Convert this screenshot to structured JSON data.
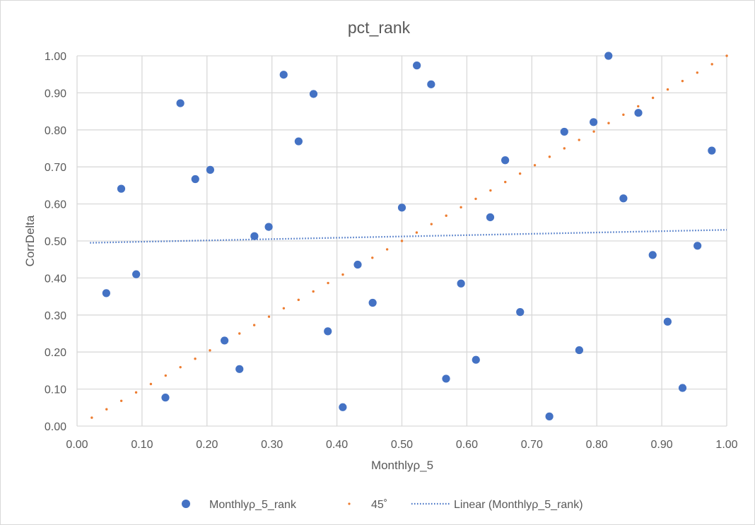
{
  "chart_data": {
    "type": "scatter",
    "title": "pct_rank",
    "xlabel": "Monthlyρ_5",
    "ylabel": "CorrDelta",
    "xlim": [
      0,
      1
    ],
    "ylim": [
      0,
      1
    ],
    "x_ticks": [
      "0.00",
      "0.10",
      "0.20",
      "0.30",
      "0.40",
      "0.50",
      "0.60",
      "0.70",
      "0.80",
      "0.90",
      "1.00"
    ],
    "y_ticks": [
      "0.00",
      "0.10",
      "0.20",
      "0.30",
      "0.40",
      "0.50",
      "0.60",
      "0.70",
      "0.80",
      "0.90",
      "1.00"
    ],
    "grid": true,
    "legend_position": "bottom",
    "series": [
      {
        "name": "Monthlyρ_5_rank",
        "style": "marker",
        "color": "#4472C4",
        "points": [
          [
            0.045,
            0.359
          ],
          [
            0.068,
            0.641
          ],
          [
            0.091,
            0.41
          ],
          [
            0.136,
            0.077
          ],
          [
            0.159,
            0.872
          ],
          [
            0.182,
            0.667
          ],
          [
            0.205,
            0.692
          ],
          [
            0.227,
            0.231
          ],
          [
            0.25,
            0.154
          ],
          [
            0.273,
            0.513
          ],
          [
            0.295,
            0.538
          ],
          [
            0.318,
            0.949
          ],
          [
            0.341,
            0.769
          ],
          [
            0.364,
            0.897
          ],
          [
            0.386,
            0.256
          ],
          [
            0.409,
            0.051
          ],
          [
            0.432,
            0.436
          ],
          [
            0.455,
            0.333
          ],
          [
            0.5,
            0.59
          ],
          [
            0.523,
            0.974
          ],
          [
            0.545,
            0.923
          ],
          [
            0.568,
            0.128
          ],
          [
            0.591,
            0.385
          ],
          [
            0.614,
            0.179
          ],
          [
            0.636,
            0.564
          ],
          [
            0.659,
            0.718
          ],
          [
            0.682,
            0.308
          ],
          [
            0.727,
            0.026
          ],
          [
            0.75,
            0.795
          ],
          [
            0.773,
            0.205
          ],
          [
            0.795,
            0.821
          ],
          [
            0.818,
            1.0
          ],
          [
            0.841,
            0.615
          ],
          [
            0.864,
            0.846
          ],
          [
            0.886,
            0.462
          ],
          [
            0.909,
            0.282
          ],
          [
            0.932,
            0.103
          ],
          [
            0.955,
            0.487
          ],
          [
            0.977,
            0.744
          ]
        ]
      },
      {
        "name": "45˚",
        "style": "small-marker",
        "color": "#ED7D31",
        "x_start": 0.0227,
        "x_step": 0.02273,
        "count": 44
      },
      {
        "name": "Linear (Monthlyρ_5_rank)",
        "style": "dotted-line",
        "color": "#4472C4",
        "line": [
          [
            0.02,
            0.495
          ],
          [
            1.0,
            0.53
          ]
        ]
      }
    ]
  }
}
